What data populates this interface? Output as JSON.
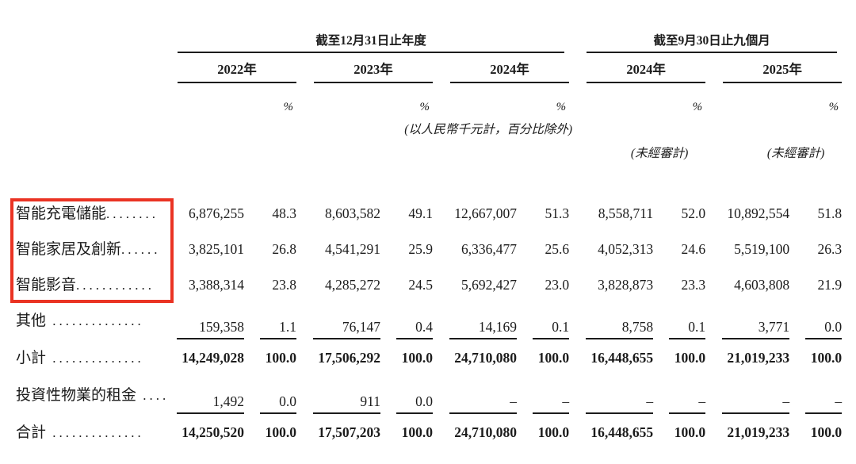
{
  "table": {
    "period_groups": [
      {
        "title": "截至12月31日止年度"
      },
      {
        "title": "截至9月30日止九個月"
      }
    ],
    "year_headers": [
      "2022年",
      "2023年",
      "2024年",
      "2024年",
      "2025年"
    ],
    "percent_symbol": "%",
    "unit_note": "(以人民幣千元計，百分比除外)",
    "unaudited_label": "(未經審計)",
    "rows": [
      {
        "label": "智能充電儲能",
        "leader": "........",
        "highlighted": true,
        "bold": false,
        "ruled": false,
        "values": [
          "6,876,255",
          "48.3",
          "8,603,582",
          "49.1",
          "12,667,007",
          "51.3",
          "8,558,711",
          "52.0",
          "10,892,554",
          "51.8"
        ]
      },
      {
        "label": "智能家居及創新",
        "leader": "......",
        "highlighted": true,
        "bold": false,
        "ruled": false,
        "values": [
          "3,825,101",
          "26.8",
          "4,541,291",
          "25.9",
          "6,336,477",
          "25.6",
          "4,052,313",
          "24.6",
          "5,519,100",
          "26.3"
        ]
      },
      {
        "label": "智能影音",
        "leader": "............",
        "highlighted": true,
        "bold": false,
        "ruled": false,
        "values": [
          "3,388,314",
          "23.8",
          "4,285,272",
          "24.5",
          "5,692,427",
          "23.0",
          "3,828,873",
          "23.3",
          "4,603,808",
          "21.9"
        ]
      },
      {
        "label": "其他",
        "leader": " ..............",
        "highlighted": false,
        "bold": false,
        "ruled": true,
        "values": [
          "159,358",
          "1.1",
          "76,147",
          "0.4",
          "14,169",
          "0.1",
          "8,758",
          "0.1",
          "3,771",
          "0.0"
        ]
      },
      {
        "label": "小計",
        "leader": " ..............",
        "highlighted": false,
        "bold": true,
        "ruled": false,
        "values": [
          "14,249,028",
          "100.0",
          "17,506,292",
          "100.0",
          "24,710,080",
          "100.0",
          "16,448,655",
          "100.0",
          "21,019,233",
          "100.0"
        ]
      },
      {
        "label": "投資性物業的租金",
        "leader": " ....",
        "highlighted": false,
        "bold": false,
        "ruled": true,
        "values": [
          "1,492",
          "0.0",
          "911",
          "0.0",
          "–",
          "–",
          "–",
          "–",
          "–",
          "–"
        ]
      },
      {
        "label": "合計",
        "leader": " ..............",
        "highlighted": false,
        "bold": true,
        "ruled": false,
        "values": [
          "14,250,520",
          "100.0",
          "17,507,203",
          "100.0",
          "24,710,080",
          "100.0",
          "16,448,655",
          "100.0",
          "21,019,233",
          "100.0"
        ]
      }
    ]
  },
  "annotation": {
    "type": "highlight-box",
    "color": "#ea3323",
    "highlights_rows": [
      "智能充電儲能",
      "智能家居及創新",
      "智能影音"
    ]
  }
}
